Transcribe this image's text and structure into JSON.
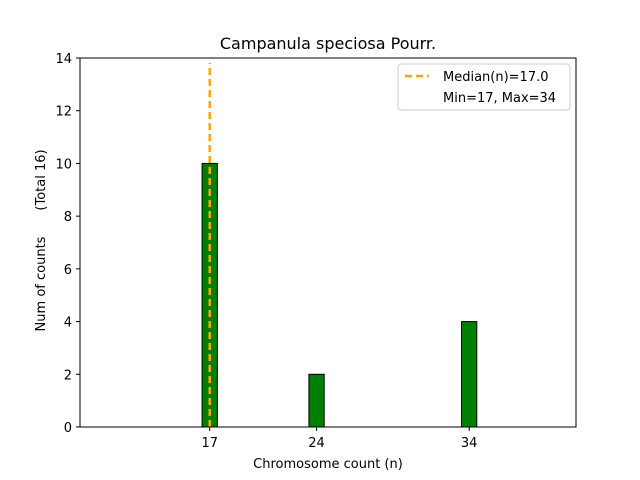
{
  "chart_data": {
    "type": "bar",
    "title": "Campanula speciosa Pourr.",
    "xlabel": "Chromosome count (n)",
    "ylabel": "Num of counts",
    "ylabel_note": "(Total 16)",
    "x": [
      17,
      24,
      34
    ],
    "values": [
      10,
      2,
      4
    ],
    "xlim": [
      8.5,
      41
    ],
    "ylim": [
      0,
      14
    ],
    "yticks": [
      0,
      2,
      4,
      6,
      8,
      10,
      12,
      14
    ],
    "xticks": [
      17,
      24,
      34
    ],
    "bar_width": 1,
    "bar_color": "#008000",
    "bar_edge_color": "#000000",
    "baseline_end": 38,
    "median": 17.0,
    "median_color": "#FFA500",
    "legend": {
      "placement": "top-right",
      "entries": [
        "Median(n)=17.0",
        "Min=17, Max=34"
      ]
    }
  }
}
